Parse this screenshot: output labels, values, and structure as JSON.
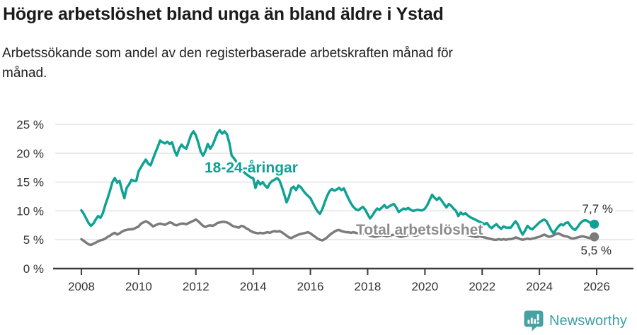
{
  "chart_data": {
    "type": "line",
    "title": "Högre arbetslöshet bland unga än bland äldre i Ystad",
    "subtitle": "Arbetssökande som andel av den registerbaserade arbetskraften månad för\nmånad.",
    "xlabel": "",
    "ylabel": "",
    "unit": "%",
    "frequency": "monthly",
    "x_start": "2008-01",
    "x_end": "2025-12",
    "ylim": [
      0,
      25
    ],
    "grid": "horizontal",
    "legend_position": "inline-labels",
    "yticks": [
      {
        "value": 0,
        "label": "0 %"
      },
      {
        "value": 5,
        "label": "5 %"
      },
      {
        "value": 10,
        "label": "10 %"
      },
      {
        "value": 15,
        "label": "15 %"
      },
      {
        "value": 20,
        "label": "20 %"
      },
      {
        "value": 25,
        "label": "25 %"
      }
    ],
    "xticks": [
      {
        "year": 2008,
        "label": "2008"
      },
      {
        "year": 2010,
        "label": "2010"
      },
      {
        "year": 2012,
        "label": "2012"
      },
      {
        "year": 2014,
        "label": "2014"
      },
      {
        "year": 2016,
        "label": "2016"
      },
      {
        "year": 2018,
        "label": "2018"
      },
      {
        "year": 2020,
        "label": "2020"
      },
      {
        "year": 2022,
        "label": "2022"
      },
      {
        "year": 2024,
        "label": "2024"
      },
      {
        "year": 2026,
        "label": "2026"
      }
    ],
    "series": [
      {
        "name": "18-24-åringar",
        "color": "#0fa294",
        "end_label": "7,7 %",
        "end_value": 7.7,
        "values": [
          10.1,
          9.5,
          8.7,
          7.9,
          7.4,
          7.8,
          8.5,
          9.1,
          8.8,
          9.6,
          11.0,
          12.2,
          13.5,
          15.0,
          15.7,
          14.9,
          15.2,
          13.6,
          12.2,
          14.0,
          14.6,
          15.4,
          15.2,
          15.2,
          16.9,
          17.6,
          18.3,
          18.9,
          18.2,
          17.9,
          19.0,
          20.1,
          21.1,
          22.2,
          21.9,
          21.7,
          22.0,
          21.6,
          21.9,
          20.5,
          19.6,
          20.8,
          21.5,
          21.0,
          20.8,
          22.0,
          23.2,
          23.8,
          23.1,
          21.8,
          20.3,
          19.6,
          20.4,
          21.6,
          20.8,
          21.4,
          22.4,
          23.5,
          24.0,
          23.4,
          23.8,
          23.3,
          21.8,
          19.6,
          19.1,
          18.5,
          17.9,
          17.3,
          16.8,
          16.4,
          16.1,
          15.8,
          15.7,
          14.0,
          15.2,
          14.6,
          15.0,
          14.4,
          14.0,
          14.8,
          15.2,
          15.4,
          15.7,
          15.3,
          14.2,
          12.9,
          11.5,
          12.4,
          13.9,
          14.2,
          13.6,
          14.4,
          14.1,
          13.5,
          13.0,
          12.6,
          12.2,
          11.4,
          10.6,
          9.9,
          9.5,
          10.3,
          11.5,
          12.6,
          13.4,
          13.8,
          13.5,
          13.7,
          14.0,
          13.6,
          13.9,
          13.0,
          12.1,
          11.3,
          10.7,
          10.3,
          10.1,
          10.4,
          10.7,
          10.2,
          9.4,
          8.7,
          9.2,
          9.9,
          10.4,
          10.2,
          10.6,
          11.0,
          10.5,
          10.8,
          11.0,
          11.2,
          10.6,
          9.8,
          10.1,
          10.4,
          10.3,
          10.5,
          10.2,
          10.0,
          10.1,
          10.2,
          10.1,
          10.1,
          10.4,
          11.0,
          11.9,
          12.8,
          12.3,
          11.9,
          12.3,
          11.8,
          11.2,
          10.6,
          11.2,
          10.9,
          10.4,
          10.0,
          9.1,
          9.7,
          9.4,
          9.6,
          9.2,
          8.9,
          8.7,
          8.5,
          8.3,
          8.1,
          7.9,
          7.7,
          7.9,
          7.3,
          7.0,
          7.4,
          7.7,
          7.2,
          6.9,
          7.3,
          7.1,
          7.1,
          7.1,
          7.7,
          8.2,
          7.6,
          6.6,
          5.9,
          6.6,
          7.4,
          7.0,
          6.8,
          7.2,
          7.6,
          8.0,
          8.3,
          8.5,
          8.2,
          7.4,
          6.6,
          6.1,
          6.8,
          7.3,
          7.7,
          7.5,
          7.9,
          8.0,
          7.4,
          6.9,
          6.7,
          7.2,
          7.8,
          8.2,
          8.4,
          8.3,
          8.0,
          7.8,
          7.7
        ]
      },
      {
        "name": "Total arbetslöshet",
        "color": "#7b7b7b",
        "end_label": "5,5 %",
        "end_value": 5.5,
        "values": [
          5.1,
          4.8,
          4.5,
          4.2,
          4.1,
          4.3,
          4.5,
          4.7,
          4.9,
          5.0,
          5.2,
          5.5,
          5.7,
          6.0,
          6.2,
          5.9,
          6.1,
          6.4,
          6.6,
          6.7,
          6.8,
          6.8,
          6.9,
          7.1,
          7.3,
          7.8,
          8.0,
          8.2,
          8.0,
          7.7,
          7.3,
          7.5,
          7.7,
          7.8,
          7.7,
          7.6,
          7.8,
          8.0,
          7.9,
          7.6,
          7.5,
          7.7,
          7.8,
          7.8,
          7.7,
          7.9,
          8.1,
          8.3,
          8.5,
          8.2,
          7.8,
          7.4,
          7.2,
          7.4,
          7.5,
          7.4,
          7.6,
          7.9,
          8.0,
          8.1,
          8.1,
          8.0,
          7.8,
          7.5,
          7.3,
          7.2,
          7.1,
          7.4,
          7.3,
          7.0,
          6.8,
          6.5,
          6.3,
          6.2,
          6.1,
          6.2,
          6.1,
          6.2,
          6.3,
          6.2,
          6.4,
          6.5,
          6.4,
          6.5,
          6.3,
          6.0,
          5.7,
          5.4,
          5.3,
          5.5,
          5.7,
          5.9,
          6.0,
          6.1,
          6.2,
          6.3,
          6.1,
          5.8,
          5.5,
          5.2,
          5.0,
          4.9,
          5.1,
          5.4,
          5.8,
          6.1,
          6.4,
          6.6,
          6.7,
          6.5,
          6.4,
          6.3,
          6.3,
          6.2,
          6.3,
          6.2,
          6.1,
          6.2,
          6.1,
          6.0,
          5.9,
          5.7,
          5.6,
          5.5,
          5.6,
          5.7,
          5.8,
          5.7,
          5.6,
          5.7,
          5.8,
          5.9,
          5.8,
          5.6,
          5.5,
          5.6,
          5.7,
          5.8,
          5.9,
          5.8,
          5.7,
          5.8,
          5.9,
          6.0,
          6.1,
          6.2,
          6.5,
          7.0,
          7.1,
          7.0,
          6.9,
          6.8,
          6.7,
          6.6,
          6.5,
          6.5,
          6.4,
          6.3,
          6.2,
          6.1,
          6.0,
          5.9,
          5.8,
          5.7,
          5.6,
          5.5,
          5.5,
          5.6,
          5.5,
          5.4,
          5.3,
          5.2,
          5.1,
          5.0,
          5.0,
          5.1,
          5.0,
          5.1,
          5.0,
          5.1,
          5.1,
          5.2,
          5.4,
          5.3,
          5.1,
          5.0,
          5.1,
          5.2,
          5.1,
          5.2,
          5.3,
          5.4,
          5.5,
          5.7,
          5.9,
          5.7,
          5.5,
          5.6,
          5.8,
          6.0,
          6.1,
          5.9,
          5.7,
          5.6,
          5.5,
          5.3,
          5.2,
          5.3,
          5.4,
          5.5,
          5.6,
          5.5,
          5.4,
          5.3,
          5.4,
          5.5
        ]
      }
    ],
    "colors": {
      "youth_line": "#0fa294",
      "total_line": "#7b7b7b",
      "total_label": "#8c8c8c",
      "gridline": "#dcdcdc",
      "axis": "#3a3a3a",
      "tick_text": "#333333",
      "brand_teal": "#3d9fa3"
    }
  },
  "footer": {
    "brand": "Newsworthy"
  }
}
